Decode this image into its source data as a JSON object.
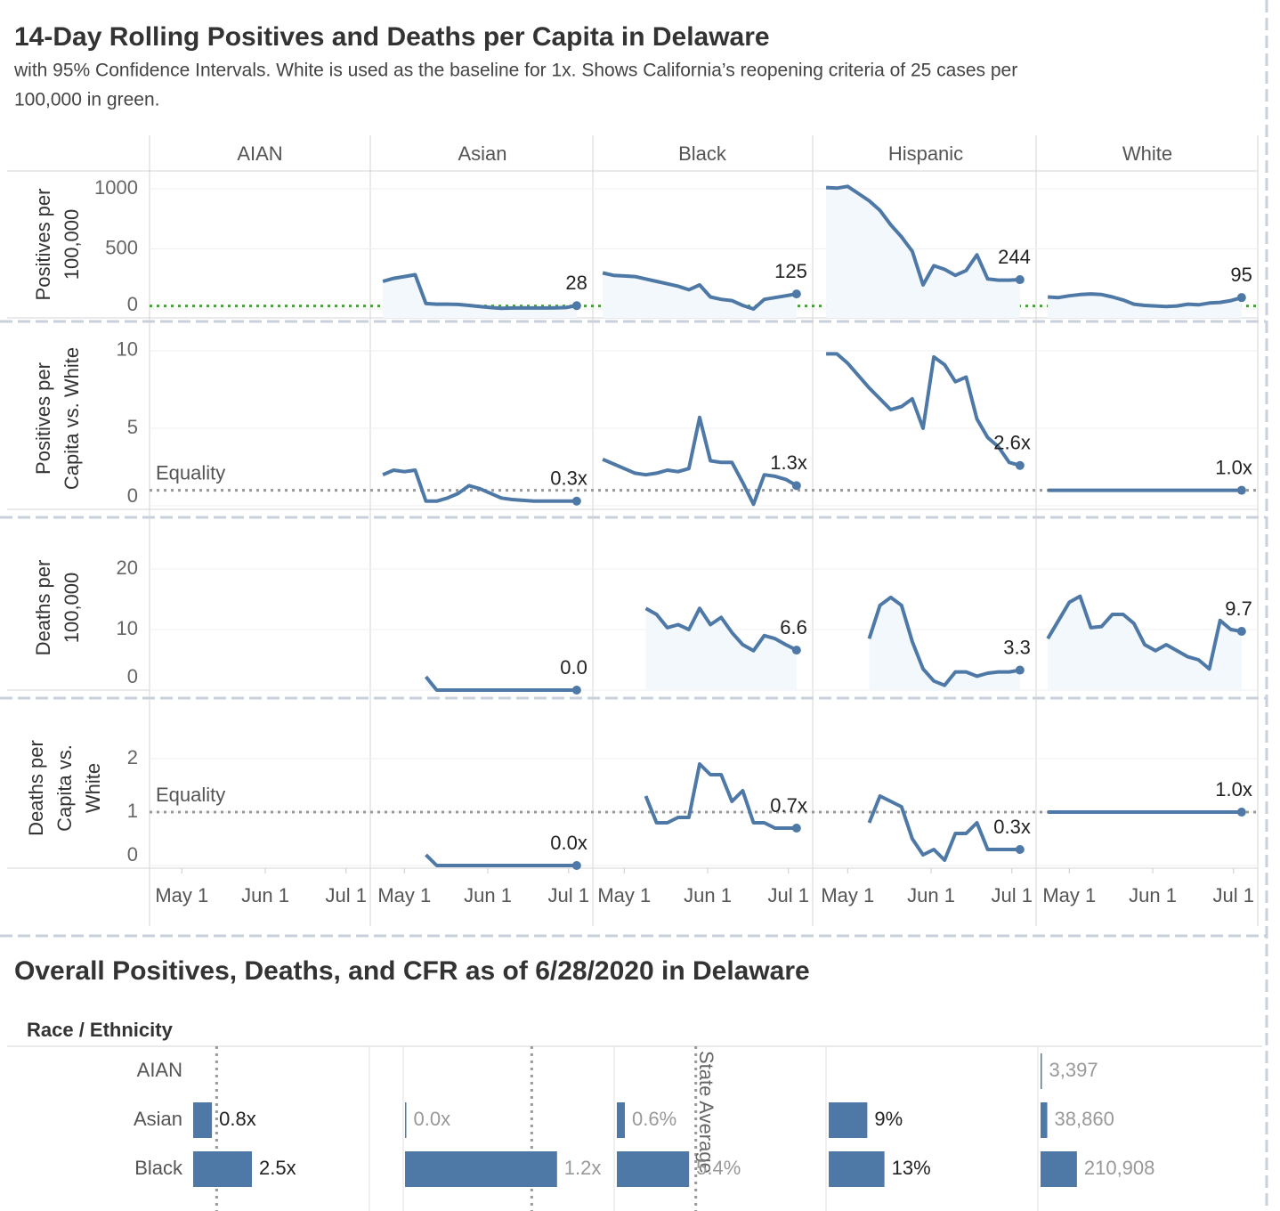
{
  "title": "14-Day Rolling Positives and Deaths per Capita in Delaware",
  "subtitle": [
    "with 95% Confidence Intervals.  White is used as the baseline for 1x. Shows California’s reopening criteria of 25 cases per",
    "100,000 in green."
  ],
  "trellis": {
    "type": "line",
    "color": "#4e79a7",
    "columns": [
      "AIAN",
      "Asian",
      "Black",
      "Hispanic",
      "White"
    ],
    "x": [
      -8,
      -4,
      0,
      4,
      8,
      12,
      16,
      20,
      24,
      28,
      32,
      36,
      40,
      44,
      48,
      52,
      56,
      60,
      64
    ],
    "xlim": [
      -12,
      70
    ],
    "xticks": [
      {
        "value": 0,
        "label": "May 1"
      },
      {
        "value": 31,
        "label": "Jun 1"
      },
      {
        "value": 61,
        "label": "Jul 1"
      }
    ],
    "rows": [
      {
        "axis_label": [
          "Positives per",
          "100,000"
        ],
        "ylim": [
          -74,
          1148
        ],
        "yticks": [
          0,
          500,
          1000
        ],
        "area": true,
        "reference": {
          "value": 25,
          "color": "#4a9e3a"
        },
        "series": [
          {
            "values": [
              null,
              null,
              null,
              null,
              null,
              null,
              null,
              null,
              null,
              null,
              null,
              null,
              null,
              null,
              null,
              null,
              null,
              null,
              null
            ]
          },
          {
            "values": [
              230,
              255,
              270,
              285,
              45,
              40,
              40,
              38,
              30,
              20,
              12,
              5,
              8,
              10,
              8,
              8,
              10,
              12,
              28
            ]
          },
          {
            "values": [
              300,
              280,
              275,
              270,
              250,
              230,
              210,
              190,
              160,
              200,
              100,
              80,
              70,
              30,
              0,
              80,
              95,
              110,
              125
            ]
          },
          {
            "values": [
              1010,
              1005,
              1020,
              960,
              900,
              820,
              700,
              600,
              480,
              200,
              360,
              330,
              280,
              320,
              450,
              250,
              240,
              240,
              244
            ]
          },
          {
            "values": [
              100,
              95,
              110,
              120,
              125,
              120,
              100,
              75,
              40,
              30,
              25,
              20,
              25,
              40,
              35,
              50,
              55,
              70,
              95
            ]
          }
        ]
      },
      {
        "axis_label": [
          "Positives per",
          "Capita vs. White"
        ],
        "ylim": [
          -0.23,
          11.49
        ],
        "yticks": [
          0,
          5,
          10
        ],
        "area": false,
        "reference": {
          "value": 1,
          "label": "Equality",
          "color": "#999999"
        },
        "series": [
          {
            "values": [
              null,
              null,
              null,
              null,
              null,
              null,
              null,
              null,
              null,
              null,
              null,
              null,
              null,
              null,
              null,
              null,
              null,
              null,
              null
            ]
          },
          {
            "values": [
              2.0,
              2.3,
              2.2,
              2.3,
              0.3,
              0.3,
              0.5,
              0.8,
              1.3,
              1.1,
              0.8,
              0.5,
              0.4,
              0.35,
              0.3,
              0.3,
              0.3,
              0.3,
              0.3
            ],
            "value_labels": [
              null,
              null,
              null,
              null,
              null,
              null,
              null,
              null,
              null,
              null,
              null,
              null,
              null,
              null,
              null,
              null,
              null,
              null,
              "0.3x"
            ]
          },
          {
            "values": [
              3.0,
              2.7,
              2.4,
              2.1,
              2.0,
              2.1,
              2.3,
              2.2,
              2.4,
              5.7,
              2.9,
              2.8,
              2.8,
              1.5,
              0.1,
              2.0,
              1.9,
              1.7,
              1.3
            ],
            "value_labels": [
              null,
              null,
              null,
              null,
              null,
              null,
              null,
              null,
              null,
              null,
              null,
              null,
              null,
              null,
              null,
              null,
              null,
              null,
              "1.3x"
            ]
          },
          {
            "values": [
              9.8,
              9.8,
              9.2,
              8.4,
              7.6,
              6.9,
              6.2,
              6.4,
              6.9,
              5.0,
              9.6,
              9.1,
              8.0,
              8.3,
              5.6,
              4.4,
              3.8,
              2.8,
              2.6
            ],
            "value_labels": [
              null,
              null,
              null,
              null,
              null,
              null,
              null,
              null,
              null,
              null,
              null,
              null,
              null,
              null,
              null,
              null,
              null,
              null,
              "2.6x"
            ]
          },
          {
            "values": [
              1,
              1,
              1,
              1,
              1,
              1,
              1,
              1,
              1,
              1,
              1,
              1,
              1,
              1,
              1,
              1,
              1,
              1,
              1
            ],
            "value_labels": [
              null,
              null,
              null,
              null,
              null,
              null,
              null,
              null,
              null,
              null,
              null,
              null,
              null,
              null,
              null,
              null,
              null,
              null,
              "1.0x"
            ]
          }
        ]
      },
      {
        "axis_label": [
          "Deaths per",
          "100,000"
        ],
        "ylim": [
          0,
          27.2
        ],
        "yticks": [
          0,
          10,
          20
        ],
        "area": true,
        "series": [
          {
            "values": [
              null,
              null,
              null,
              null,
              null,
              null,
              null,
              null,
              null,
              null,
              null,
              null,
              null,
              null,
              null,
              null,
              null,
              null,
              null
            ]
          },
          {
            "values": [
              null,
              null,
              null,
              null,
              2.2,
              0,
              0,
              0,
              0,
              0,
              0,
              0,
              0,
              0,
              0,
              0,
              0,
              0,
              0
            ],
            "value_labels": [
              null,
              null,
              null,
              null,
              null,
              null,
              null,
              null,
              null,
              null,
              null,
              null,
              null,
              null,
              null,
              null,
              null,
              null,
              "0.0"
            ]
          },
          {
            "values": [
              null,
              null,
              null,
              null,
              13.5,
              12.5,
              10.3,
              10.8,
              10,
              13.5,
              10.8,
              12,
              9.5,
              7.5,
              6.5,
              9,
              8.5,
              7.5,
              6.6
            ]
          },
          {
            "values": [
              null,
              null,
              null,
              null,
              8.5,
              14,
              15.3,
              14,
              8,
              3.5,
              1.5,
              0.8,
              3,
              3,
              2.3,
              2.8,
              3,
              3,
              3.3
            ]
          },
          {
            "values": [
              8.5,
              11.5,
              14.5,
              15.5,
              10.3,
              10.5,
              12.5,
              12.5,
              11,
              7.5,
              6.5,
              7.5,
              6.5,
              5.5,
              5,
              3.5,
              11.5,
              10,
              9.7
            ]
          }
        ]
      },
      {
        "axis_label": [
          "Deaths per",
          "Capita vs.",
          "White"
        ],
        "ylim": [
          -0.05,
          2.95
        ],
        "yticks": [
          0,
          1,
          2
        ],
        "area": false,
        "reference": {
          "value": 1,
          "label": "Equality",
          "color": "#999999"
        },
        "series": [
          {
            "values": [
              null,
              null,
              null,
              null,
              null,
              null,
              null,
              null,
              null,
              null,
              null,
              null,
              null,
              null,
              null,
              null,
              null,
              null,
              null
            ]
          },
          {
            "values": [
              null,
              null,
              null,
              null,
              0.2,
              0,
              0,
              0,
              0,
              0,
              0,
              0,
              0,
              0,
              0,
              0,
              0,
              0,
              0
            ],
            "value_labels": [
              null,
              null,
              null,
              null,
              null,
              null,
              null,
              null,
              null,
              null,
              null,
              null,
              null,
              null,
              null,
              null,
              null,
              null,
              "0.0x"
            ]
          },
          {
            "values": [
              null,
              null,
              null,
              null,
              1.3,
              0.8,
              0.8,
              0.9,
              0.9,
              1.9,
              1.7,
              1.7,
              1.2,
              1.4,
              0.8,
              0.8,
              0.7,
              0.7,
              0.7
            ],
            "value_labels": [
              null,
              null,
              null,
              null,
              null,
              null,
              null,
              null,
              null,
              null,
              null,
              null,
              null,
              null,
              null,
              null,
              null,
              null,
              "0.7x"
            ]
          },
          {
            "values": [
              null,
              null,
              null,
              null,
              0.8,
              1.3,
              1.2,
              1.1,
              0.5,
              0.2,
              0.3,
              0.1,
              0.6,
              0.6,
              0.8,
              0.3,
              0.3,
              0.3,
              0.3
            ],
            "value_labels": [
              null,
              null,
              null,
              null,
              null,
              null,
              null,
              null,
              null,
              null,
              null,
              null,
              null,
              null,
              null,
              null,
              null,
              null,
              "0.3x"
            ]
          },
          {
            "values": [
              1,
              1,
              1,
              1,
              1,
              1,
              1,
              1,
              1,
              1,
              1,
              1,
              1,
              1,
              1,
              1,
              1,
              1,
              1
            ],
            "value_labels": [
              null,
              null,
              null,
              null,
              null,
              null,
              null,
              null,
              null,
              null,
              null,
              null,
              null,
              null,
              null,
              null,
              null,
              null,
              "1.0x"
            ]
          }
        ]
      }
    ]
  },
  "summary": {
    "type": "bar",
    "title": "Overall Positives, Deaths, and CFR as of 6/28/2020 in Delaware",
    "row_header": "Race / Ethnicity",
    "reference_label": "State Average",
    "color": "#4e79a7",
    "categories": [
      "AIAN",
      "Asian",
      "Black"
    ],
    "columns": [
      {
        "values": [
          null,
          0.8,
          2.5
        ],
        "value_labels": [
          null,
          "0.8x",
          "2.5x"
        ],
        "xlim": [
          0,
          7.5
        ],
        "reference": 1,
        "label_color": "#222222"
      },
      {
        "values": [
          null,
          0.0,
          1.2
        ],
        "value_labels": [
          null,
          "0.0x",
          "1.2x"
        ],
        "xlim": [
          0,
          1.37
        ],
        "reference": 1,
        "label_color": "#999999"
      },
      {
        "values": [
          null,
          0.6,
          5.4
        ],
        "value_labels": [
          null,
          "0.6%",
          "5.4%"
        ],
        "xlim": [
          0,
          15.7
        ],
        "reference": 5.9,
        "label_color": "#999999"
      },
      {
        "values": [
          null,
          9,
          13
        ],
        "value_labels": [
          null,
          "9%",
          "13%"
        ],
        "xlim": [
          0,
          49
        ],
        "label_color": "#222222"
      },
      {
        "values": [
          3397,
          38860,
          210908
        ],
        "value_labels": [
          "3,397",
          "38,860",
          "210,908"
        ],
        "xlim": [
          0,
          1290000
        ],
        "label_color": "#999999"
      }
    ]
  }
}
